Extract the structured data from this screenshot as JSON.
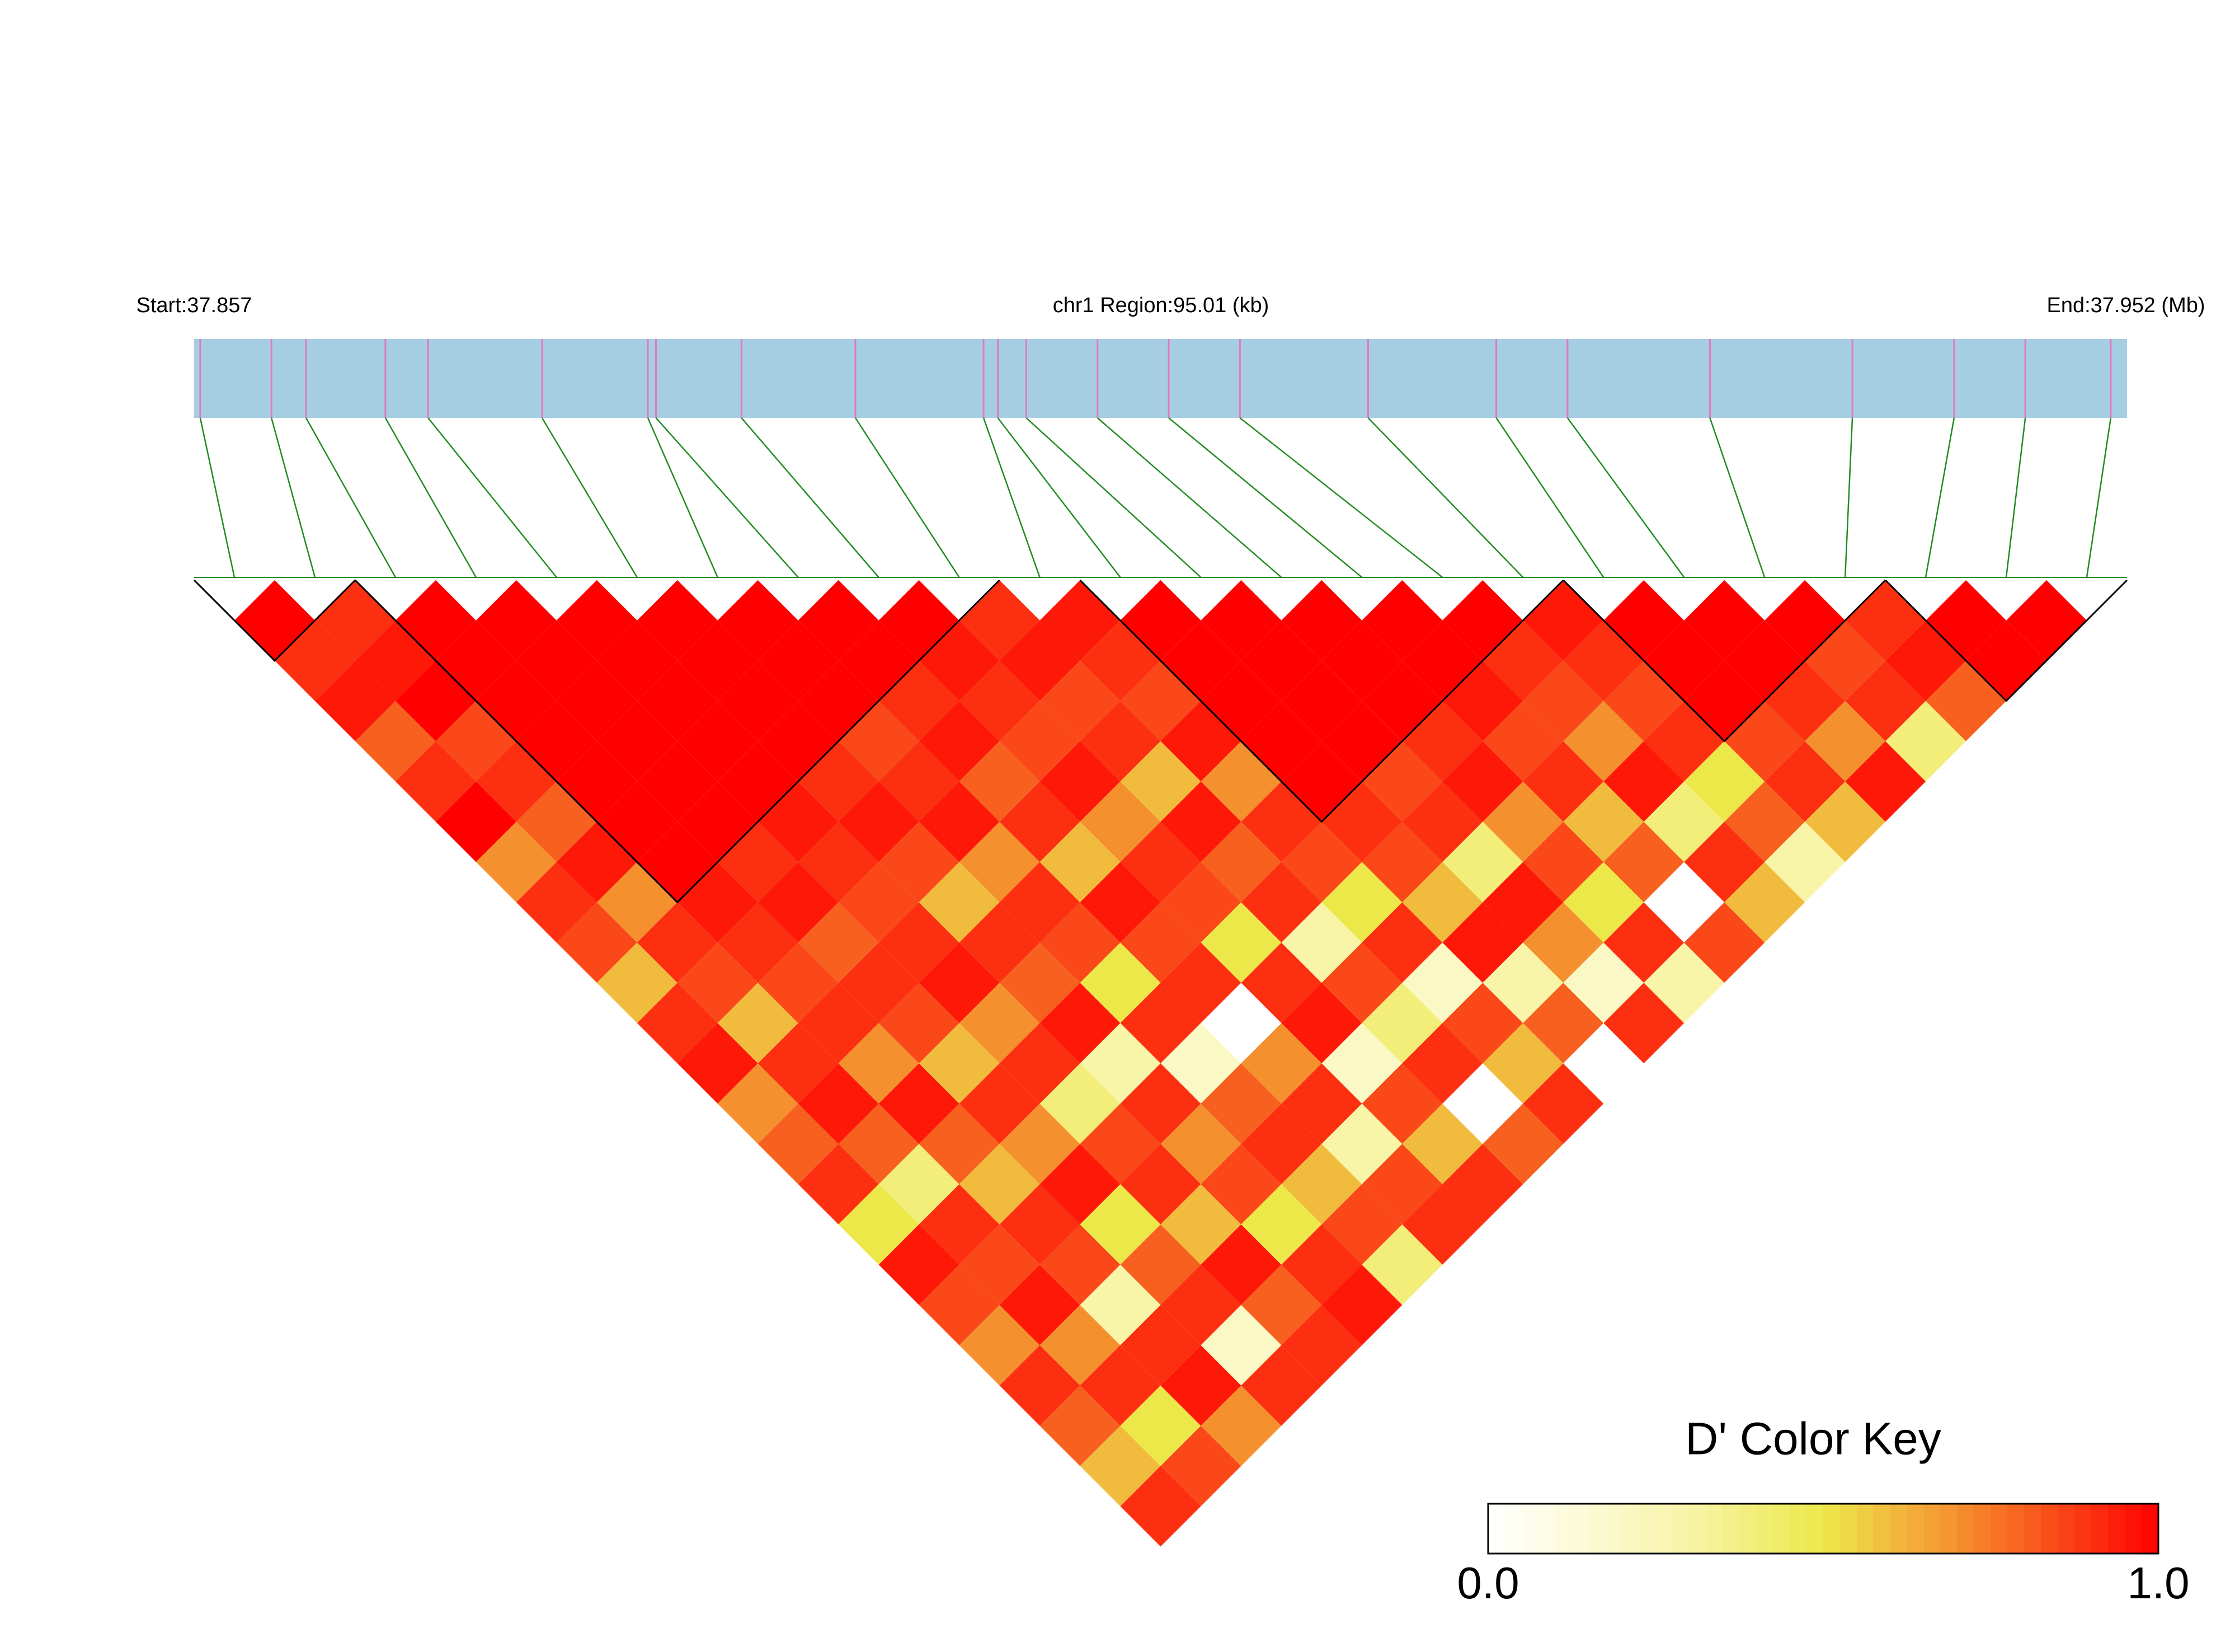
{
  "chart_data": {
    "type": "ld_heatmap",
    "start_label": "Start:37.857",
    "region_label": "chr1 Region:95.01 (kb)",
    "end_label": "End:37.952 (Mb)",
    "xlim": [
      37.857,
      37.952
    ],
    "snp_positions": [
      37.8573,
      37.8608,
      37.8625,
      37.8664,
      37.8685,
      37.8741,
      37.8793,
      37.8797,
      37.8839,
      37.8895,
      37.8958,
      37.8965,
      37.8979,
      37.9014,
      37.9049,
      37.9084,
      37.9147,
      37.921,
      37.9245,
      37.9315,
      37.9385,
      37.9435,
      37.947,
      37.9512
    ],
    "bar_color": "#a6cee3",
    "snp_color": "#e377c2",
    "link_color": "#228b22",
    "ld_values": [
      [
        1,
        0.9,
        0.95,
        0.8,
        0.9,
        1,
        0.7,
        0.9,
        0.85,
        0.6,
        0.9,
        0.95,
        0.7,
        0.8,
        0.9,
        0.5,
        0.95,
        0.85,
        0.7,
        0.9,
        0.8,
        0.6,
        0.9
      ],
      [
        0.9,
        0.95,
        1,
        0.85,
        0.9,
        0.8,
        0.95,
        0.7,
        0.9,
        0.85,
        0.6,
        0.9,
        0.95,
        0.8,
        0.4,
        0.9,
        0.85,
        0.95,
        0.7,
        0.9,
        0.5,
        0.85
      ],
      [
        1,
        1,
        1,
        1,
        1,
        1,
        1,
        0.95,
        0.9,
        0.85,
        0.9,
        0.7,
        0.95,
        0.8,
        0.6,
        0.9,
        0.85,
        0.3,
        0.9,
        0.95,
        0.7
      ],
      [
        1,
        1,
        1,
        1,
        1,
        1,
        0.9,
        0.95,
        0.8,
        0.9,
        0.85,
        0.6,
        0.9,
        0.7,
        0.95,
        0.5,
        0.8,
        0.9,
        0.2,
        0.9
      ],
      [
        1,
        1,
        1,
        1,
        1,
        0.95,
        0.9,
        0.85,
        0.9,
        0.95,
        0.7,
        0.9,
        0.4,
        0.85,
        0.9,
        0.6,
        0.95,
        0.8,
        0.9
      ],
      [
        1,
        1,
        1,
        1,
        0.9,
        0.95,
        0.85,
        0.6,
        0.9,
        0.8,
        0.95,
        0.3,
        0.9,
        0.7,
        0.85,
        0.5,
        0.9,
        0.95
      ],
      [
        1,
        1,
        1,
        0.85,
        0.9,
        0.95,
        0.7,
        0.9,
        0.85,
        0.5,
        0.9,
        0.2,
        0.8,
        0.9,
        0.6,
        0.85,
        0.4
      ],
      [
        1,
        1,
        0.9,
        0.95,
        0.8,
        0.9,
        0.6,
        0.95,
        0.85,
        0.9,
        0,
        0.7,
        0.9,
        0.3,
        0.85,
        0.9
      ],
      [
        1,
        0.95,
        0.9,
        0.85,
        0.95,
        0.7,
        0.9,
        0.85,
        0.5,
        0.9,
        0.95,
        0.2,
        0.85,
        0.6,
        0.9
      ],
      [
        0.9,
        0.95,
        0.85,
        0.9,
        0.6,
        0.95,
        0.8,
        0.9,
        0.3,
        0.85,
        0.4,
        0.9,
        0,
        0.8
      ],
      [
        0.95,
        0.9,
        0.85,
        0.95,
        0.7,
        0.9,
        0.85,
        0.5,
        0.9,
        0.2,
        0.85,
        0.6,
        0.9
      ],
      [
        1,
        1,
        1,
        1,
        1,
        0.9,
        0.85,
        0.6,
        0.95,
        0.3,
        0.8,
        0
      ],
      [
        1,
        1,
        1,
        1,
        0.85,
        0.9,
        0.4,
        0.95,
        0.7,
        0.2,
        0.9
      ],
      [
        1,
        1,
        1,
        0.9,
        0.95,
        0.7,
        0.85,
        0.5,
        0.9,
        0.3
      ],
      [
        1,
        1,
        0.95,
        0.85,
        0.9,
        0.6,
        0.8,
        0,
        0.85
      ],
      [
        1,
        0.9,
        0.85,
        0.7,
        0.95,
        0.4,
        0.9,
        0.6
      ],
      [
        0.95,
        0.9,
        0.85,
        0.9,
        0.5,
        0.8,
        0.3
      ],
      [
        1,
        1,
        1,
        0.85,
        0.9,
        0.6
      ],
      [
        1,
        1,
        0.9,
        0.7,
        0.95
      ],
      [
        1,
        0.85,
        0.9,
        0.4
      ],
      [
        0.9,
        0.95,
        0.8
      ],
      [
        1,
        1
      ],
      [
        1
      ]
    ],
    "blocks": [
      [
        0,
        1
      ],
      [
        2,
        9
      ],
      [
        11,
        16
      ],
      [
        17,
        20
      ],
      [
        21,
        23
      ]
    ],
    "color_stops": [
      {
        "value": 0,
        "color": "#ffffff"
      },
      {
        "value": 0.3,
        "color": "#f8f4a8"
      },
      {
        "value": 0.5,
        "color": "#ece84a"
      },
      {
        "value": 0.7,
        "color": "#f5902f"
      },
      {
        "value": 1,
        "color": "#ff0000"
      }
    ],
    "key_title": "D' Color Key",
    "key_ticks": [
      {
        "value": 0,
        "label": "0.0"
      },
      {
        "value": 1,
        "label": "1.0"
      }
    ]
  }
}
